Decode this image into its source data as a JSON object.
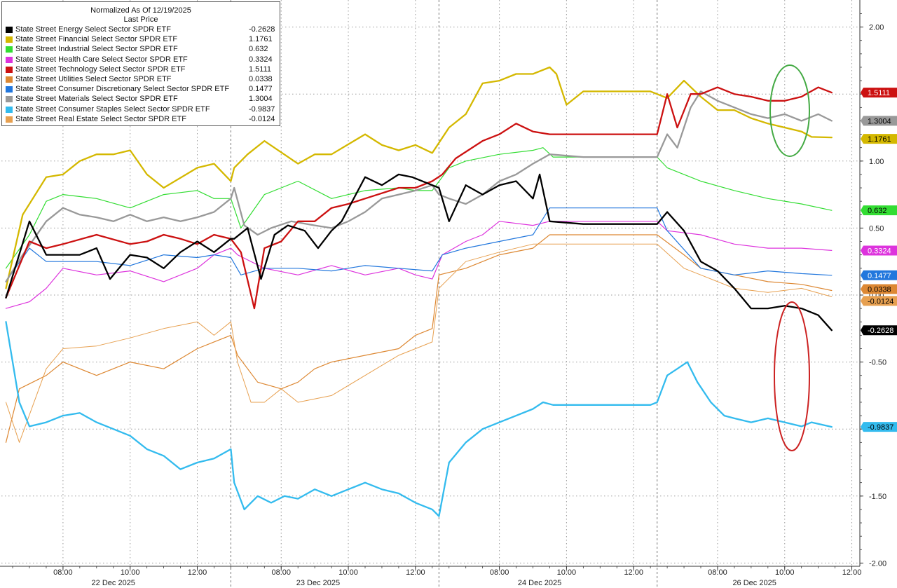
{
  "legend": {
    "title": "Normalized As Of 12/19/2025",
    "subtitle": "Last Price"
  },
  "chart_data": {
    "type": "line",
    "title": "Normalized As Of 12/19/2025",
    "ylim": [
      -2.0,
      2.2
    ],
    "y_ticks": [
      "2.00",
      "1.50",
      "1.00",
      "0.50",
      "0.00",
      "-0.50",
      "-1.00",
      "-1.50",
      "-2.00"
    ],
    "x_ticks": [
      {
        "label": "08:00",
        "x": 1
      },
      {
        "label": "10:00",
        "x": 3
      },
      {
        "label": "12:00",
        "x": 5
      },
      {
        "label": "08:00",
        "x": 7.5
      },
      {
        "label": "10:00",
        "x": 9.5
      },
      {
        "label": "12:00",
        "x": 11.5
      },
      {
        "label": "08:00",
        "x": 14
      },
      {
        "label": "10:00",
        "x": 16
      },
      {
        "label": "12:00",
        "x": 18
      },
      {
        "label": "08:00",
        "x": 20.5
      },
      {
        "label": "10:00",
        "x": 22.5
      },
      {
        "label": "12:00",
        "x": 24.5
      }
    ],
    "dates": [
      "22 Dec 2025",
      "23 Dec 2025",
      "24 Dec 2025",
      "26 Dec 2025"
    ],
    "grid": true,
    "legend_position": "top-left",
    "series": [
      {
        "name": "State Street Energy Select Sector SPDR ETF",
        "last": "-0.2628",
        "color": "#000000",
        "width": 2.3,
        "x": [
          -0.7,
          0,
          0.5,
          1,
          1.5,
          2,
          2.4,
          3,
          3.5,
          4,
          4.5,
          5,
          5.5,
          6,
          6.1,
          6.5,
          6.9,
          7.3,
          7.7,
          8.2,
          8.6,
          9,
          9.3,
          10,
          10.5,
          11,
          11.4,
          12,
          12.2,
          12.5,
          13,
          13.5,
          14,
          14.5,
          15,
          15.2,
          15.5,
          16.5,
          17.5,
          18.5,
          18.7,
          19,
          19.5,
          20,
          20.5,
          21,
          21.5,
          22,
          22.5,
          23,
          23.5,
          23.9
        ],
        "y": [
          -0.02,
          0.55,
          0.3,
          0.3,
          0.3,
          0.35,
          0.12,
          0.3,
          0.28,
          0.2,
          0.32,
          0.4,
          0.32,
          0.42,
          0.42,
          0.5,
          0.12,
          0.45,
          0.52,
          0.48,
          0.35,
          0.48,
          0.55,
          0.88,
          0.82,
          0.9,
          0.88,
          0.82,
          0.8,
          0.55,
          0.82,
          0.75,
          0.82,
          0.85,
          0.72,
          0.9,
          0.55,
          0.53,
          0.53,
          0.53,
          0.53,
          0.62,
          0.48,
          0.25,
          0.18,
          0.05,
          -0.1,
          -0.1,
          -0.08,
          -0.1,
          -0.15,
          -0.2628
        ]
      },
      {
        "name": "State Street Financial Select Sector SPDR ETF",
        "last": "1.1761",
        "color": "#d4b800",
        "width": 2.3,
        "x": [
          -0.7,
          -0.2,
          0.5,
          1,
          1.5,
          2,
          2.5,
          3,
          3.5,
          4,
          5,
          5.5,
          6,
          6.1,
          6.5,
          7,
          8,
          8.5,
          9,
          10,
          10.5,
          11,
          11.5,
          12,
          12.5,
          13,
          13.5,
          14,
          14.5,
          15,
          15.5,
          15.7,
          16,
          16.5,
          17.5,
          18.5,
          19,
          19.5,
          20,
          20.5,
          21,
          21.5,
          22,
          22.5,
          23,
          23.3,
          23.9
        ],
        "y": [
          0.05,
          0.6,
          0.88,
          0.9,
          1.0,
          1.05,
          1.05,
          1.08,
          0.9,
          0.8,
          0.95,
          0.98,
          0.85,
          0.95,
          1.05,
          1.15,
          0.98,
          1.05,
          1.05,
          1.2,
          1.12,
          1.08,
          1.12,
          1.06,
          1.25,
          1.35,
          1.58,
          1.6,
          1.65,
          1.65,
          1.7,
          1.65,
          1.42,
          1.52,
          1.52,
          1.52,
          1.47,
          1.6,
          1.48,
          1.38,
          1.38,
          1.32,
          1.28,
          1.25,
          1.22,
          1.18,
          1.1761
        ]
      },
      {
        "name": "State Street Industrial Select Sector SPDR ETF",
        "last": "0.632",
        "color": "#33dd33",
        "width": 1.2,
        "x": [
          -0.7,
          0,
          0.5,
          1,
          2,
          3,
          4,
          5,
          5.5,
          6,
          6.3,
          7,
          8,
          9,
          10,
          11,
          11.5,
          12,
          12.5,
          13,
          14,
          15,
          15.3,
          15.6,
          16.5,
          17.5,
          18.5,
          18.7,
          19,
          20,
          21,
          22,
          23,
          23.9
        ],
        "y": [
          0.2,
          0.45,
          0.7,
          0.75,
          0.72,
          0.65,
          0.75,
          0.78,
          0.72,
          0.72,
          0.5,
          0.75,
          0.85,
          0.72,
          0.78,
          0.8,
          0.78,
          0.78,
          0.95,
          1.0,
          1.05,
          1.08,
          1.1,
          1.03,
          1.03,
          1.03,
          1.03,
          1.03,
          0.95,
          0.85,
          0.78,
          0.72,
          0.68,
          0.632
        ]
      },
      {
        "name": "State Street Health Care Select Sector SPDR ETF",
        "last": "0.3324",
        "color": "#dd33dd",
        "width": 1.2,
        "x": [
          -0.7,
          0,
          0.5,
          1,
          2,
          3,
          4,
          5,
          5.5,
          6,
          6.2,
          7,
          8,
          9,
          10,
          11,
          11.5,
          12,
          12.3,
          13,
          13.5,
          14,
          15,
          15.5,
          16.5,
          17.5,
          18.5,
          18.7,
          19,
          20,
          21,
          22,
          23,
          23.9
        ],
        "y": [
          -0.1,
          -0.05,
          0.05,
          0.2,
          0.15,
          0.18,
          0.1,
          0.2,
          0.3,
          0.35,
          0.3,
          0.2,
          0.15,
          0.22,
          0.15,
          0.2,
          0.15,
          0.12,
          0.3,
          0.4,
          0.45,
          0.55,
          0.52,
          0.55,
          0.55,
          0.55,
          0.55,
          0.55,
          0.48,
          0.45,
          0.38,
          0.35,
          0.35,
          0.3324
        ]
      },
      {
        "name": "State Street Technology Select Sector SPDR ETF",
        "last": "1.5111",
        "color": "#cc1111",
        "width": 2.3,
        "x": [
          -0.7,
          0,
          0.5,
          1,
          2,
          3,
          3.5,
          4,
          4.5,
          5,
          5.5,
          6,
          6.3,
          6.7,
          7,
          7.5,
          8,
          8.5,
          9,
          9.5,
          10,
          11,
          11.5,
          12,
          12.3,
          12.7,
          13.5,
          14,
          14.5,
          15,
          15.5,
          16.5,
          17.5,
          18.5,
          18.7,
          19,
          19.3,
          19.7,
          20,
          20.5,
          21,
          21.5,
          22,
          22.5,
          23,
          23.5,
          23.9
        ],
        "y": [
          -0.02,
          0.4,
          0.35,
          0.38,
          0.45,
          0.38,
          0.4,
          0.45,
          0.42,
          0.38,
          0.45,
          0.42,
          0.32,
          -0.1,
          0.35,
          0.4,
          0.55,
          0.55,
          0.65,
          0.68,
          0.72,
          0.8,
          0.8,
          0.85,
          0.9,
          1.02,
          1.15,
          1.2,
          1.28,
          1.22,
          1.2,
          1.2,
          1.2,
          1.2,
          1.2,
          1.5,
          1.25,
          1.5,
          1.5,
          1.55,
          1.5,
          1.48,
          1.45,
          1.45,
          1.48,
          1.55,
          1.5111
        ]
      },
      {
        "name": "State Street Utilities Select Sector SPDR ETF",
        "last": "0.0338",
        "color": "#dd8833",
        "width": 1.2,
        "x": [
          -0.7,
          -0.3,
          0.5,
          1,
          2,
          3,
          4,
          5,
          5.5,
          6,
          6.2,
          6.8,
          7.5,
          8,
          8.5,
          9,
          10,
          11,
          11.5,
          12,
          12.2,
          13,
          14,
          15,
          15.5,
          16.5,
          17.5,
          18.5,
          18.7,
          19.5,
          20,
          21,
          22,
          23,
          23.9
        ],
        "y": [
          -1.1,
          -0.7,
          -0.6,
          -0.5,
          -0.6,
          -0.5,
          -0.55,
          -0.4,
          -0.35,
          -0.3,
          -0.45,
          -0.65,
          -0.7,
          -0.65,
          -0.55,
          -0.5,
          -0.45,
          -0.4,
          -0.3,
          -0.25,
          0.15,
          0.2,
          0.3,
          0.35,
          0.45,
          0.45,
          0.45,
          0.45,
          0.45,
          0.3,
          0.2,
          0.15,
          0.1,
          0.08,
          0.0338
        ]
      },
      {
        "name": "State Street Consumer Discretionary Select Sector SPDR ETF",
        "last": "0.1477",
        "color": "#2277dd",
        "width": 1.2,
        "x": [
          -0.7,
          0,
          0.5,
          1,
          2,
          3,
          4,
          5,
          5.5,
          6,
          6.3,
          7,
          8,
          9,
          10,
          11,
          12,
          12.3,
          13,
          14,
          15,
          15.5,
          16.5,
          17.5,
          18.5,
          18.7,
          19,
          20,
          21,
          22,
          23,
          23.9
        ],
        "y": [
          0.1,
          0.35,
          0.25,
          0.25,
          0.25,
          0.22,
          0.3,
          0.28,
          0.3,
          0.28,
          0.15,
          0.2,
          0.2,
          0.18,
          0.22,
          0.2,
          0.18,
          0.3,
          0.35,
          0.4,
          0.45,
          0.65,
          0.65,
          0.65,
          0.65,
          0.65,
          0.48,
          0.2,
          0.15,
          0.18,
          0.16,
          0.1477
        ]
      },
      {
        "name": "State Street Materials Select Sector SPDR ETF",
        "last": "1.3004",
        "color": "#999999",
        "width": 2.3,
        "x": [
          -0.7,
          -0.2,
          0.5,
          1,
          1.5,
          2,
          2.5,
          3,
          3.5,
          4,
          4.5,
          5,
          5.5,
          6,
          6.1,
          6.4,
          6.8,
          7.2,
          7.8,
          8.5,
          9,
          9.5,
          10,
          10.5,
          11,
          11.5,
          12,
          12.2,
          12.5,
          13,
          13.5,
          14,
          14.5,
          15,
          15.5,
          16.5,
          17.5,
          18.5,
          18.7,
          19,
          19.3,
          19.7,
          20,
          20.5,
          21,
          21.5,
          22,
          22.5,
          23,
          23.5,
          23.9
        ],
        "y": [
          0.1,
          0.3,
          0.55,
          0.65,
          0.6,
          0.58,
          0.55,
          0.6,
          0.55,
          0.58,
          0.55,
          0.58,
          0.62,
          0.72,
          0.8,
          0.52,
          0.45,
          0.5,
          0.55,
          0.52,
          0.5,
          0.55,
          0.62,
          0.72,
          0.75,
          0.78,
          0.82,
          0.75,
          0.72,
          0.68,
          0.75,
          0.85,
          0.9,
          0.98,
          1.05,
          1.03,
          1.03,
          1.03,
          1.03,
          1.2,
          1.1,
          1.4,
          1.52,
          1.45,
          1.4,
          1.35,
          1.32,
          1.35,
          1.3,
          1.35,
          1.3004
        ]
      },
      {
        "name": "State Street Consumer Staples Select Sector SPDR ETF",
        "last": "-0.9837",
        "color": "#33bbee",
        "width": 2.3,
        "x": [
          -0.7,
          -0.3,
          0,
          0.5,
          1,
          1.5,
          2,
          2.5,
          3,
          3.5,
          4,
          4.5,
          5,
          5.5,
          6,
          6.1,
          6.4,
          6.8,
          7.2,
          7.6,
          8,
          8.5,
          9,
          9.5,
          10,
          10.5,
          11,
          11.5,
          12,
          12.2,
          12.5,
          13,
          13.5,
          14,
          14.5,
          15,
          15.3,
          15.6,
          16.5,
          17.5,
          18.5,
          18.7,
          19,
          19.3,
          19.6,
          19.9,
          20.3,
          20.7,
          21,
          21.5,
          22,
          22.5,
          23,
          23.3,
          23.9
        ],
        "y": [
          -0.2,
          -0.8,
          -0.98,
          -0.95,
          -0.9,
          -0.88,
          -0.95,
          -1.0,
          -1.05,
          -1.15,
          -1.2,
          -1.3,
          -1.25,
          -1.22,
          -1.15,
          -1.4,
          -1.6,
          -1.5,
          -1.55,
          -1.5,
          -1.52,
          -1.45,
          -1.5,
          -1.45,
          -1.4,
          -1.45,
          -1.48,
          -1.55,
          -1.6,
          -1.65,
          -1.25,
          -1.1,
          -1.0,
          -0.95,
          -0.9,
          -0.85,
          -0.8,
          -0.82,
          -0.82,
          -0.82,
          -0.82,
          -0.8,
          -0.6,
          -0.55,
          -0.5,
          -0.65,
          -0.8,
          -0.9,
          -0.92,
          -0.95,
          -0.92,
          -0.95,
          -0.98,
          -0.95,
          -0.9837
        ]
      },
      {
        "name": "State Street Real Estate Select Sector SPDR ETF",
        "last": "-0.0124",
        "color": "#e7a050",
        "width": 1.0,
        "x": [
          -0.7,
          -0.3,
          0.5,
          1,
          2,
          3,
          4,
          5,
          5.5,
          6,
          6.2,
          6.6,
          7,
          7.5,
          8,
          9,
          10,
          11,
          11.5,
          12,
          12.2,
          13,
          14,
          15,
          15.5,
          16.5,
          17.5,
          18.5,
          18.7,
          19.5,
          20,
          21,
          22,
          23,
          23.9
        ],
        "y": [
          -0.8,
          -1.1,
          -0.55,
          -0.4,
          -0.38,
          -0.32,
          -0.25,
          -0.2,
          -0.3,
          -0.2,
          -0.5,
          -0.8,
          -0.8,
          -0.7,
          -0.8,
          -0.75,
          -0.6,
          -0.45,
          -0.4,
          -0.35,
          0.05,
          0.25,
          0.32,
          0.38,
          0.38,
          0.38,
          0.38,
          0.38,
          0.38,
          0.2,
          0.15,
          0.05,
          0.02,
          0.05,
          -0.0124
        ]
      }
    ],
    "annotations": [
      {
        "type": "ellipse",
        "color": "#44aa44",
        "around": "leaders"
      },
      {
        "type": "ellipse",
        "color": "#cc2222",
        "around": "laggards"
      }
    ]
  }
}
